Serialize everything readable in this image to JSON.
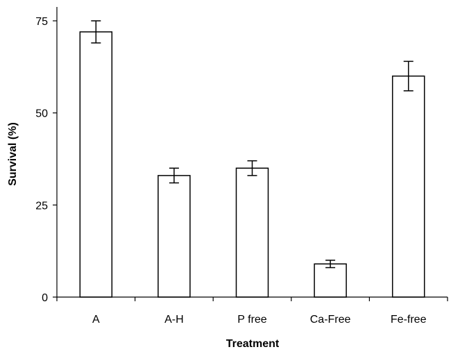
{
  "chart_data": {
    "type": "bar",
    "categories": [
      "A",
      "A-H",
      "P free",
      "Ca-Free",
      "Fe-free"
    ],
    "values": [
      72,
      33,
      35,
      9,
      60
    ],
    "error": [
      3,
      2,
      2,
      1,
      4
    ],
    "xlabel": "Treatment",
    "ylabel": "Survival (%)",
    "ylim": [
      0,
      75
    ],
    "yticks": [
      "0",
      "25",
      "50",
      "75"
    ],
    "grid": false,
    "bar_fill": "#ffffff",
    "bar_stroke": "#000000"
  }
}
